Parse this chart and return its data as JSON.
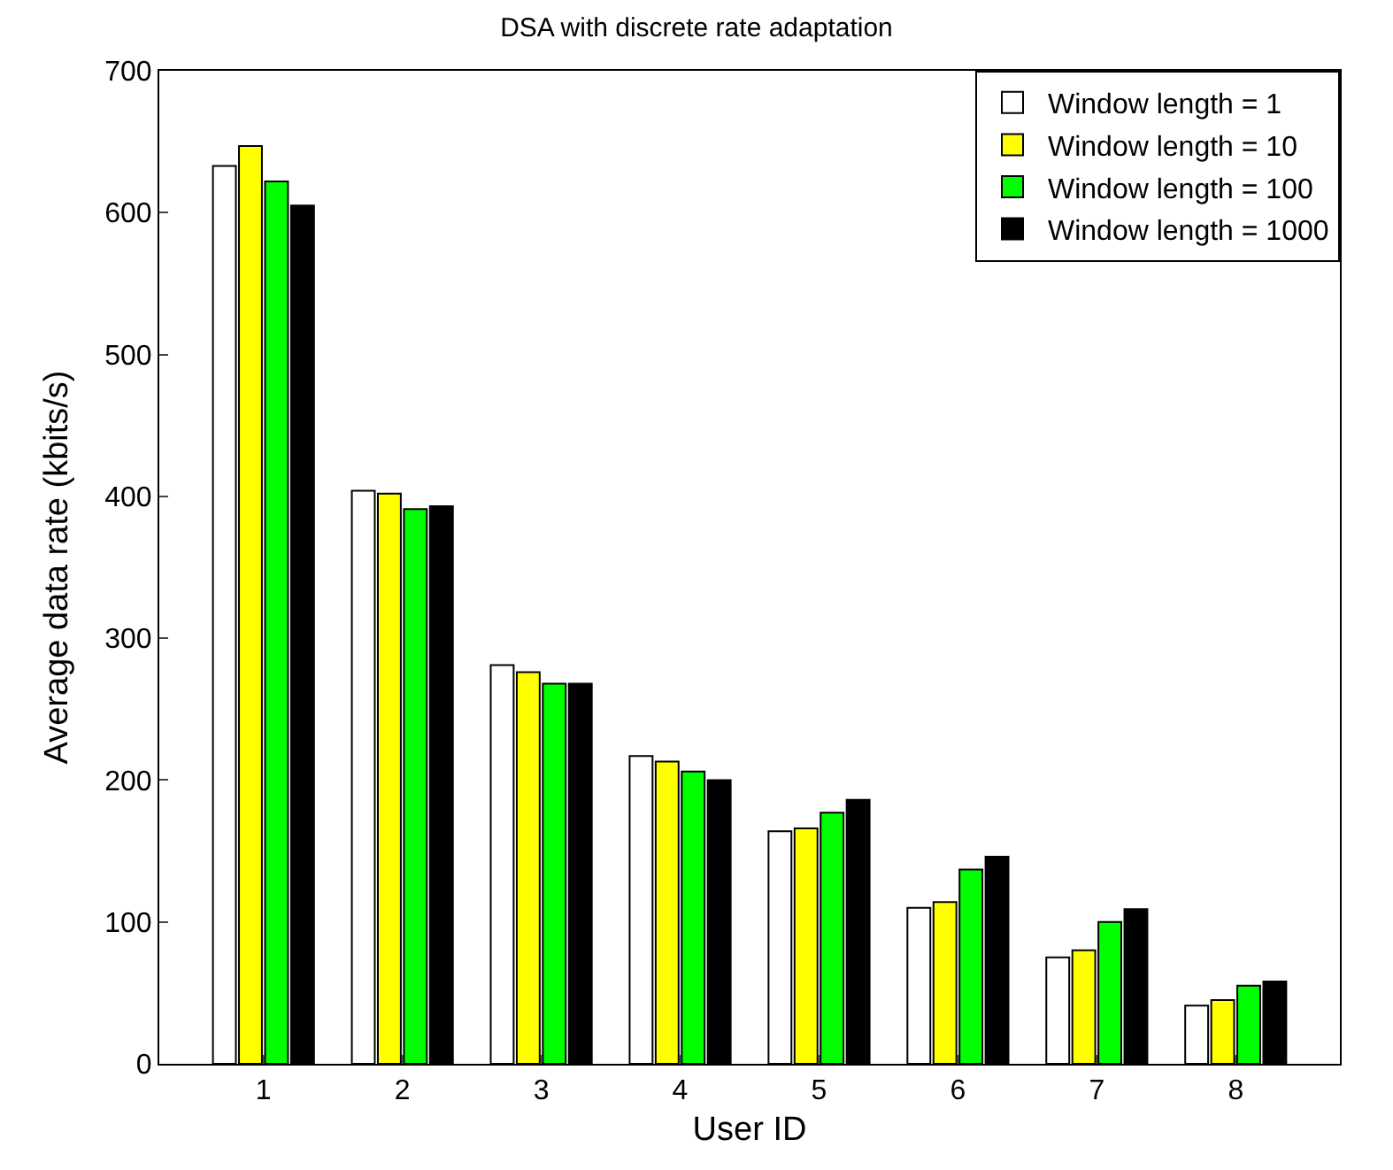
{
  "chart_data": {
    "type": "bar",
    "title": "DSA with discrete rate adaptation",
    "xlabel": "User ID",
    "ylabel": "Average data rate (kbits/s)",
    "categories": [
      "1",
      "2",
      "3",
      "4",
      "5",
      "6",
      "7",
      "8"
    ],
    "series": [
      {
        "name": "Window length = 1",
        "color": "#ffffff",
        "values": [
          633,
          404,
          281,
          217,
          164,
          110,
          75,
          41
        ]
      },
      {
        "name": "Window length = 10",
        "color": "#ffff00",
        "values": [
          647,
          402,
          276,
          213,
          166,
          114,
          80,
          45
        ]
      },
      {
        "name": "Window length = 100",
        "color": "#00ff00",
        "values": [
          622,
          391,
          268,
          206,
          177,
          137,
          100,
          55
        ]
      },
      {
        "name": "Window length = 1000",
        "color": "#000000",
        "values": [
          605,
          393,
          268,
          200,
          186,
          146,
          109,
          58
        ]
      }
    ],
    "ylim": [
      0,
      700
    ],
    "yticks": [
      0,
      100,
      200,
      300,
      400,
      500,
      600,
      700
    ],
    "legend": "top right"
  }
}
